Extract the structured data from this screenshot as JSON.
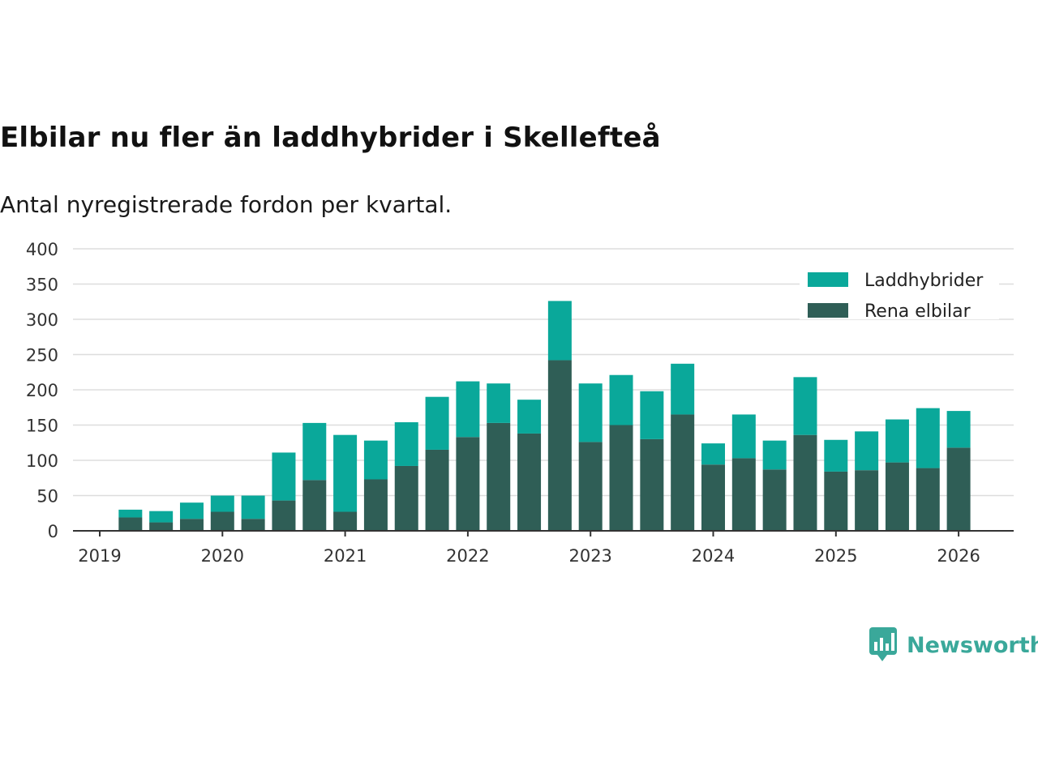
{
  "title": "Elbilar nu fler än laddhybrider i Skellefteå",
  "subtitle": "Antal nyregistrerade fordon per kvartal.",
  "brand": "Newsworthy",
  "colors": {
    "laddhybrider": "#0aa89a",
    "elbilar": "#2f5e56",
    "grid": "#dddddd",
    "axis": "#333333",
    "brand": "#3aa89a"
  },
  "chart_data": {
    "type": "bar",
    "stacked": true,
    "title": "Elbilar nu fler än laddhybrider i Skellefteå",
    "subtitle": "Antal nyregistrerade fordon per kvartal.",
    "xlabel": "",
    "ylabel": "",
    "ylim": [
      0,
      400
    ],
    "yticks": [
      0,
      50,
      100,
      150,
      200,
      250,
      300,
      350,
      400
    ],
    "xticks": [
      "2019",
      "2020",
      "2021",
      "2022",
      "2023",
      "2024",
      "2025",
      "2026"
    ],
    "x_start": 2019,
    "legend_position": "top-right",
    "categories": [
      "2019 Q2",
      "2019 Q3",
      "2019 Q4",
      "2020 Q1",
      "2020 Q2",
      "2020 Q3",
      "2020 Q4",
      "2021 Q1",
      "2021 Q2",
      "2021 Q3",
      "2021 Q4",
      "2022 Q1",
      "2022 Q2",
      "2022 Q3",
      "2022 Q4",
      "2023 Q1",
      "2023 Q2",
      "2023 Q3",
      "2023 Q4",
      "2024 Q1",
      "2024 Q2",
      "2024 Q3",
      "2024 Q4",
      "2025 Q1",
      "2025 Q2",
      "2025 Q3",
      "2025 Q4",
      "2026 Q1"
    ],
    "series": [
      {
        "name": "Rena elbilar",
        "color": "#2f5e56",
        "values": [
          19,
          12,
          17,
          27,
          17,
          43,
          72,
          27,
          73,
          92,
          115,
          133,
          153,
          138,
          242,
          126,
          150,
          130,
          165,
          94,
          103,
          87,
          136,
          84,
          86,
          97,
          89,
          118
        ]
      },
      {
        "name": "Laddhybrider",
        "color": "#0aa89a",
        "values": [
          11,
          16,
          23,
          23,
          33,
          68,
          81,
          109,
          55,
          62,
          75,
          79,
          56,
          48,
          84,
          83,
          71,
          68,
          72,
          30,
          62,
          41,
          82,
          45,
          55,
          61,
          85,
          52
        ]
      }
    ]
  }
}
